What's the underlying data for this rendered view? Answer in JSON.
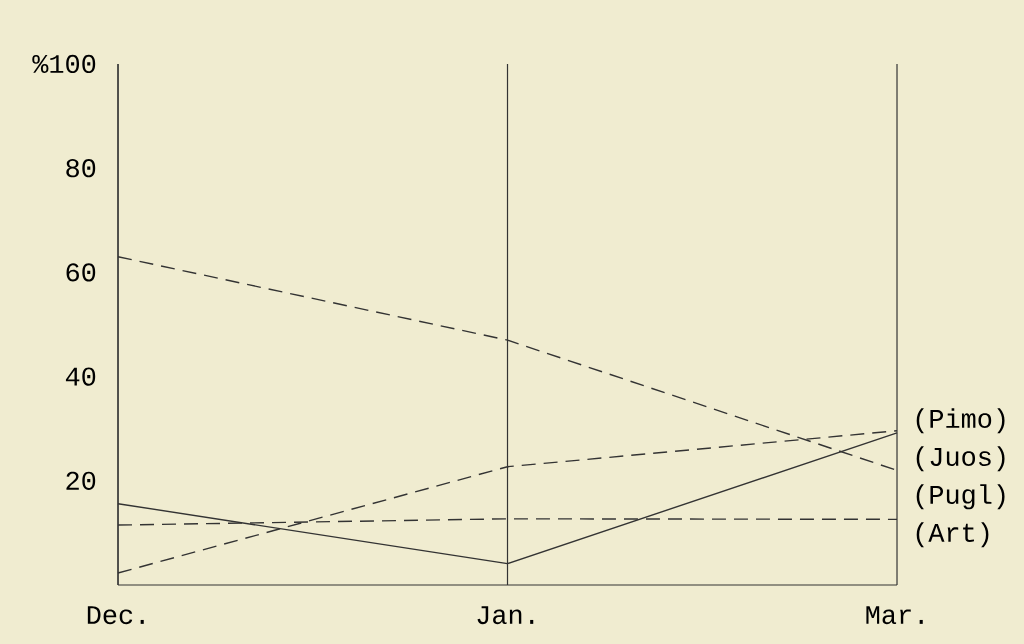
{
  "chart_data": {
    "type": "line",
    "categories": [
      "Dec.",
      "Jan.",
      "Mar."
    ],
    "series": [
      {
        "name": "(Pimo)",
        "color": "#333333",
        "line_style": "dashed",
        "values": [
          2.3,
          22.7,
          29.6
        ]
      },
      {
        "name": "(Juos)",
        "color": "#333333",
        "line_style": "solid",
        "values": [
          15.6,
          4.1,
          29.2
        ]
      },
      {
        "name": "(Pugl)",
        "color": "#333333",
        "line_style": "dashed",
        "values": [
          63,
          47,
          22
        ]
      },
      {
        "name": "(Art)",
        "color": "#333333",
        "line_style": "dashed",
        "values": [
          11.5,
          12.7,
          12.6
        ]
      }
    ],
    "ylim": [
      0,
      100
    ],
    "yticks": [
      20,
      40,
      60,
      80,
      {
        "value": 100,
        "label": "%100"
      }
    ],
    "grid": "x",
    "legend": false,
    "marker": "none"
  }
}
